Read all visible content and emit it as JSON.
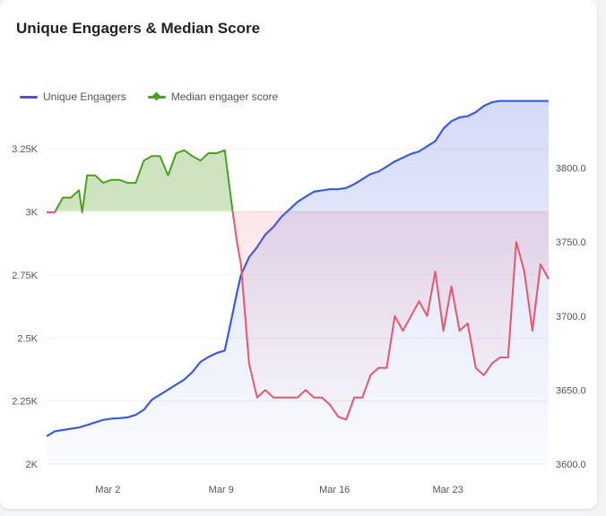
{
  "title": "Unique Engagers & Median Score",
  "colors": {
    "engagers": "#3b5bdb",
    "score_above": "#4f9e22",
    "score_below": "#e8566c"
  },
  "chart_data": {
    "type": "line",
    "title": "Unique Engagers & Median Score",
    "legend": [
      {
        "name": "Unique Engagers",
        "axis": "left"
      },
      {
        "name": "Median engager score",
        "axis": "right"
      }
    ],
    "x_ticks": [
      "Mar 2",
      "Mar 9",
      "Mar 16",
      "Mar 23"
    ],
    "x_range": [
      "2025-02-26",
      "2025-03-29"
    ],
    "left_axis": {
      "ticks": [
        "2K",
        "2.25K",
        "2.5K",
        "2.75K",
        "3K",
        "3.25K"
      ],
      "ylim": [
        2000,
        3350
      ]
    },
    "right_axis": {
      "ticks": [
        "3600.0",
        "3650.0",
        "3700.0",
        "3750.0",
        "3800.0"
      ],
      "ylim": [
        3600,
        3830
      ]
    },
    "series": [
      {
        "name": "Unique Engagers",
        "axis": "left",
        "x": [
          0,
          0.5,
          1,
          1.5,
          2,
          2.5,
          3,
          3.5,
          4,
          4.5,
          5,
          5.5,
          6,
          6.5,
          7,
          7.5,
          8,
          8.5,
          9,
          9.5,
          10,
          10.5,
          11,
          11.5,
          11.75,
          12,
          12.5,
          13,
          13.5,
          14,
          14.5,
          15,
          15.5,
          16,
          16.5,
          17,
          17.5,
          18,
          18.5,
          19,
          19.5,
          20,
          20.5,
          21,
          21.5,
          22,
          22.5,
          23,
          23.5,
          24,
          24.5,
          25,
          25.5,
          26,
          26.5,
          27,
          27.5,
          28,
          28.5,
          29,
          29.5,
          30,
          30.5,
          31
        ],
        "values": [
          2110,
          2130,
          2135,
          2140,
          2145,
          2155,
          2165,
          2175,
          2180,
          2182,
          2185,
          2195,
          2215,
          2255,
          2275,
          2295,
          2315,
          2335,
          2365,
          2405,
          2425,
          2440,
          2450,
          2600,
          2680,
          2750,
          2820,
          2860,
          2910,
          2940,
          2980,
          3010,
          3040,
          3060,
          3080,
          3085,
          3090,
          3090,
          3095,
          3110,
          3130,
          3150,
          3160,
          3180,
          3200,
          3215,
          3230,
          3240,
          3260,
          3280,
          3330,
          3360,
          3375,
          3380,
          3395,
          3420,
          3435,
          3440,
          3440,
          3440,
          3440,
          3440,
          3440,
          3440
        ],
        "x_dates_note": ""
      },
      {
        "name": "Median engager score",
        "axis": "right",
        "x": [
          0,
          0.5,
          1,
          1.5,
          2,
          2.2,
          2.5,
          3,
          3.5,
          4,
          4.5,
          5,
          5.5,
          6,
          6.5,
          7,
          7.5,
          8,
          8.5,
          9,
          9.5,
          10,
          10.5,
          11,
          11.5,
          11.75,
          12,
          12.5,
          13,
          13.5,
          14,
          14.5,
          15,
          15.5,
          16,
          16.5,
          17,
          17.5,
          18,
          18.5,
          19,
          19.5,
          20,
          20.5,
          21,
          21.5,
          22,
          22.5,
          23,
          23.5,
          24,
          24.5,
          25,
          25.5,
          26,
          26.5,
          27,
          27.5,
          28,
          28.5,
          29,
          29.5,
          30,
          30.5,
          31
        ],
        "values": [
          3770,
          3770,
          3780,
          3780,
          3785,
          3770,
          3795,
          3795,
          3790,
          3792,
          3792,
          3790,
          3790,
          3805,
          3808,
          3808,
          3795,
          3810,
          3812,
          3808,
          3805,
          3810,
          3810,
          3812,
          3770,
          3750,
          3735,
          3668,
          3645,
          3650,
          3645,
          3645,
          3645,
          3645,
          3650,
          3645,
          3645,
          3640,
          3632,
          3630,
          3645,
          3645,
          3660,
          3665,
          3665,
          3700,
          3690,
          3700,
          3710,
          3700,
          3730,
          3690,
          3720,
          3690,
          3695,
          3665,
          3660,
          3668,
          3672,
          3672,
          3750,
          3730,
          3690,
          3735,
          3725
        ]
      }
    ],
    "score_baseline": 3771,
    "grid": true
  }
}
